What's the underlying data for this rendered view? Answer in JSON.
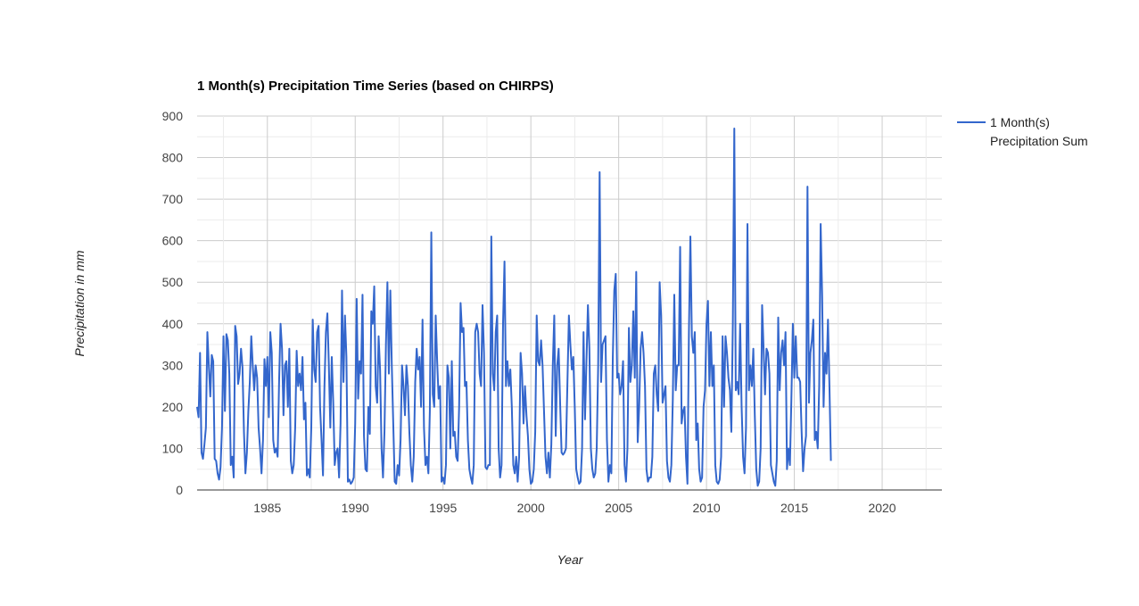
{
  "chart_data": {
    "type": "line",
    "title": "1 Month(s) Precipitation Time Series (based on CHIRPS)",
    "xlabel": "Year",
    "ylabel": "Precipitation in mm",
    "xlim": [
      1981.0,
      2023.4
    ],
    "ylim": [
      0,
      900
    ],
    "x_ticks": [
      "1985",
      "1990",
      "1995",
      "2000",
      "2005",
      "2010",
      "2015",
      "2020"
    ],
    "y_ticks": [
      "0",
      "100",
      "200",
      "300",
      "400",
      "500",
      "600",
      "700",
      "800",
      "900"
    ],
    "grid": true,
    "legend_position": "right",
    "color": "#3366cc",
    "series": [
      {
        "name": "1 Month(s) Precipitation Sum",
        "x_start": 1981.0,
        "step": 0.08333,
        "values": [
          200,
          175,
          330,
          90,
          75,
          110,
          150,
          380,
          300,
          225,
          325,
          310,
          75,
          70,
          40,
          25,
          55,
          150,
          370,
          190,
          375,
          360,
          280,
          60,
          80,
          30,
          395,
          370,
          255,
          280,
          340,
          295,
          140,
          40,
          90,
          190,
          260,
          370,
          300,
          240,
          300,
          270,
          150,
          100,
          40,
          120,
          315,
          250,
          320,
          175,
          380,
          330,
          120,
          90,
          100,
          80,
          260,
          400,
          340,
          180,
          300,
          310,
          200,
          340,
          70,
          40,
          60,
          150,
          335,
          250,
          280,
          240,
          320,
          170,
          210,
          35,
          50,
          30,
          150,
          410,
          290,
          260,
          380,
          395,
          200,
          120,
          35,
          250,
          380,
          425,
          300,
          150,
          320,
          210,
          60,
          90,
          100,
          30,
          160,
          480,
          260,
          420,
          320,
          20,
          25,
          15,
          20,
          30,
          160,
          460,
          220,
          310,
          280,
          470,
          130,
          50,
          45,
          200,
          135,
          430,
          400,
          490,
          250,
          210,
          370,
          290,
          100,
          30,
          140,
          350,
          500,
          280,
          480,
          300,
          160,
          20,
          15,
          60,
          35,
          120,
          300,
          250,
          180,
          300,
          250,
          140,
          60,
          20,
          80,
          260,
          340,
          290,
          320,
          200,
          410,
          150,
          60,
          80,
          40,
          190,
          620,
          230,
          200,
          420,
          310,
          220,
          250,
          20,
          30,
          15,
          60,
          300,
          270,
          100,
          310,
          130,
          140,
          80,
          70,
          200,
          450,
          380,
          390,
          250,
          260,
          120,
          50,
          30,
          15,
          60,
          380,
          400,
          380,
          280,
          250,
          445,
          330,
          55,
          50,
          60,
          60,
          610,
          280,
          240,
          380,
          420,
          100,
          30,
          60,
          400,
          550,
          250,
          310,
          250,
          290,
          200,
          60,
          40,
          80,
          20,
          80,
          330,
          280,
          160,
          250,
          180,
          130,
          50,
          15,
          20,
          50,
          140,
          420,
          310,
          300,
          360,
          300,
          190,
          80,
          40,
          90,
          30,
          110,
          300,
          420,
          130,
          300,
          340,
          210,
          90,
          85,
          90,
          100,
          260,
          420,
          350,
          290,
          320,
          200,
          50,
          30,
          15,
          20,
          100,
          380,
          170,
          310,
          445,
          340,
          100,
          50,
          30,
          40,
          100,
          300,
          765,
          260,
          350,
          360,
          370,
          120,
          20,
          60,
          40,
          320,
          480,
          520,
          270,
          280,
          230,
          250,
          310,
          60,
          20,
          100,
          390,
          260,
          300,
          430,
          270,
          525,
          115,
          200,
          340,
          380,
          330,
          250,
          50,
          20,
          30,
          30,
          80,
          280,
          300,
          230,
          190,
          500,
          420,
          210,
          230,
          250,
          70,
          30,
          20,
          60,
          220,
          470,
          240,
          300,
          300,
          585,
          160,
          190,
          200,
          80,
          15,
          380,
          610,
          370,
          330,
          380,
          120,
          160,
          50,
          20,
          30,
          200,
          240,
          400,
          455,
          250,
          380,
          250,
          300,
          60,
          20,
          15,
          25,
          80,
          370,
          200,
          370,
          330,
          270,
          240,
          140,
          400,
          870,
          240,
          260,
          230,
          400,
          200,
          80,
          40,
          150,
          640,
          240,
          300,
          250,
          340,
          180,
          50,
          10,
          20,
          100,
          445,
          340,
          230,
          340,
          330,
          280,
          60,
          40,
          20,
          10,
          70,
          415,
          240,
          330,
          360,
          300,
          380,
          50,
          100,
          60,
          220,
          400,
          270,
          370,
          270,
          270,
          260,
          140,
          45,
          100,
          130,
          730,
          210,
          330,
          360,
          410,
          120,
          140,
          100,
          250,
          640,
          470,
          200,
          330,
          280,
          410,
          250,
          70
        ]
      }
    ]
  }
}
